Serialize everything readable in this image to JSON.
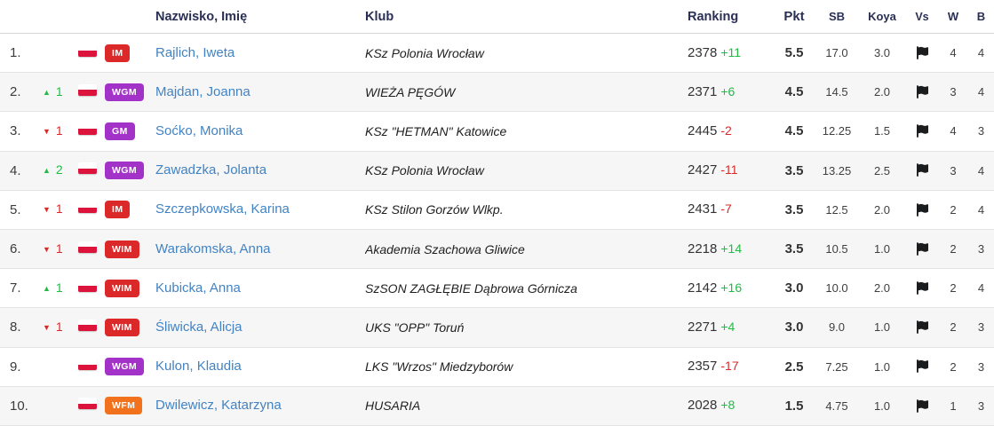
{
  "table": {
    "columns": [
      {
        "key": "rank",
        "label": ""
      },
      {
        "key": "change",
        "label": ""
      },
      {
        "key": "flag",
        "label": ""
      },
      {
        "key": "title",
        "label": ""
      },
      {
        "key": "name",
        "label": "Nazwisko, Imię"
      },
      {
        "key": "club",
        "label": "Klub"
      },
      {
        "key": "ranking",
        "label": "Ranking"
      },
      {
        "key": "pkt",
        "label": "Pkt"
      },
      {
        "key": "sb",
        "label": "SB"
      },
      {
        "key": "koya",
        "label": "Koya"
      },
      {
        "key": "vs",
        "label": "Vs"
      },
      {
        "key": "w",
        "label": "W"
      },
      {
        "key": "b",
        "label": "B"
      }
    ],
    "rows": [
      {
        "rank": "1.",
        "change": null,
        "flag": "poland",
        "title": "IM",
        "name": "Rajlich, Iweta",
        "club": "KSz Polonia Wrocław",
        "rating": "2378",
        "rating_change": "+11",
        "pkt": "5.5",
        "sb": "17.0",
        "koya": "3.0",
        "vs": "flag-icon",
        "w": "4",
        "b": "4"
      },
      {
        "rank": "2.",
        "change": {
          "dir": "up",
          "value": "1"
        },
        "flag": "poland",
        "title": "WGM",
        "name": "Majdan, Joanna",
        "club": "WIEŻA PĘGÓW",
        "rating": "2371",
        "rating_change": "+6",
        "pkt": "4.5",
        "sb": "14.5",
        "koya": "2.0",
        "vs": "flag-icon",
        "w": "3",
        "b": "4"
      },
      {
        "rank": "3.",
        "change": {
          "dir": "down",
          "value": "1"
        },
        "flag": "poland",
        "title": "GM",
        "name": "Soćko, Monika",
        "club": "KSz \"HETMAN\" Katowice",
        "rating": "2445",
        "rating_change": "-2",
        "pkt": "4.5",
        "sb": "12.25",
        "koya": "1.5",
        "vs": "flag-icon",
        "w": "4",
        "b": "3"
      },
      {
        "rank": "4.",
        "change": {
          "dir": "up",
          "value": "2"
        },
        "flag": "poland",
        "title": "WGM",
        "name": "Zawadzka, Jolanta",
        "club": "KSz Polonia Wrocław",
        "rating": "2427",
        "rating_change": "-11",
        "pkt": "3.5",
        "sb": "13.25",
        "koya": "2.5",
        "vs": "flag-icon",
        "w": "3",
        "b": "4"
      },
      {
        "rank": "5.",
        "change": {
          "dir": "down",
          "value": "1"
        },
        "flag": "poland",
        "title": "IM",
        "name": "Szczepkowska, Karina",
        "club": "KSz Stilon Gorzów Wlkp.",
        "rating": "2431",
        "rating_change": "-7",
        "pkt": "3.5",
        "sb": "12.5",
        "koya": "2.0",
        "vs": "flag-icon",
        "w": "2",
        "b": "4"
      },
      {
        "rank": "6.",
        "change": {
          "dir": "down",
          "value": "1"
        },
        "flag": "poland",
        "title": "WIM",
        "name": "Warakomska, Anna",
        "club": "Akademia Szachowa Gliwice",
        "rating": "2218",
        "rating_change": "+14",
        "pkt": "3.5",
        "sb": "10.5",
        "koya": "1.0",
        "vs": "flag-icon",
        "w": "2",
        "b": "3"
      },
      {
        "rank": "7.",
        "change": {
          "dir": "up",
          "value": "1"
        },
        "flag": "poland",
        "title": "WIM",
        "name": "Kubicka, Anna",
        "club": "SzSON ZAGŁĘBIE Dąbrowa Górnicza",
        "rating": "2142",
        "rating_change": "+16",
        "pkt": "3.0",
        "sb": "10.0",
        "koya": "2.0",
        "vs": "flag-icon",
        "w": "2",
        "b": "4"
      },
      {
        "rank": "8.",
        "change": {
          "dir": "down",
          "value": "1"
        },
        "flag": "poland",
        "title": "WIM",
        "name": "Śliwicka, Alicja",
        "club": "UKS \"OPP\" Toruń",
        "rating": "2271",
        "rating_change": "+4",
        "pkt": "3.0",
        "sb": "9.0",
        "koya": "1.0",
        "vs": "flag-icon",
        "w": "2",
        "b": "3"
      },
      {
        "rank": "9.",
        "change": null,
        "flag": "poland",
        "title": "WGM",
        "name": "Kulon, Klaudia",
        "club": "LKS \"Wrzos\" Miedzyborów",
        "rating": "2357",
        "rating_change": "-17",
        "pkt": "2.5",
        "sb": "7.25",
        "koya": "1.0",
        "vs": "flag-icon",
        "w": "2",
        "b": "3"
      },
      {
        "rank": "10.",
        "change": null,
        "flag": "poland",
        "title": "WFM",
        "name": "Dwilewicz, Katarzyna",
        "club": "HUSARIA",
        "rating": "2028",
        "rating_change": "+8",
        "pkt": "1.5",
        "sb": "4.75",
        "koya": "1.0",
        "vs": "flag-icon",
        "w": "1",
        "b": "3"
      }
    ]
  },
  "icons": {
    "up_indicator": "triangle-up-icon",
    "down_indicator": "triangle-down-icon",
    "country_flag": "poland-flag-icon",
    "vs_cell": "games-flag-icon"
  },
  "colors": {
    "link": "#4183c4",
    "positive": "#21ba45",
    "negative": "#db2828",
    "header_text": "#2a2f55",
    "stripe": "#f6f6f7",
    "row_border": "#e4e4e5",
    "flag_red": "#dc143c",
    "title_badge": {
      "IM": "#db2828",
      "WIM": "#db2828",
      "GM": "#a333c8",
      "WGM": "#a333c8",
      "WFM": "#f2711c"
    }
  }
}
